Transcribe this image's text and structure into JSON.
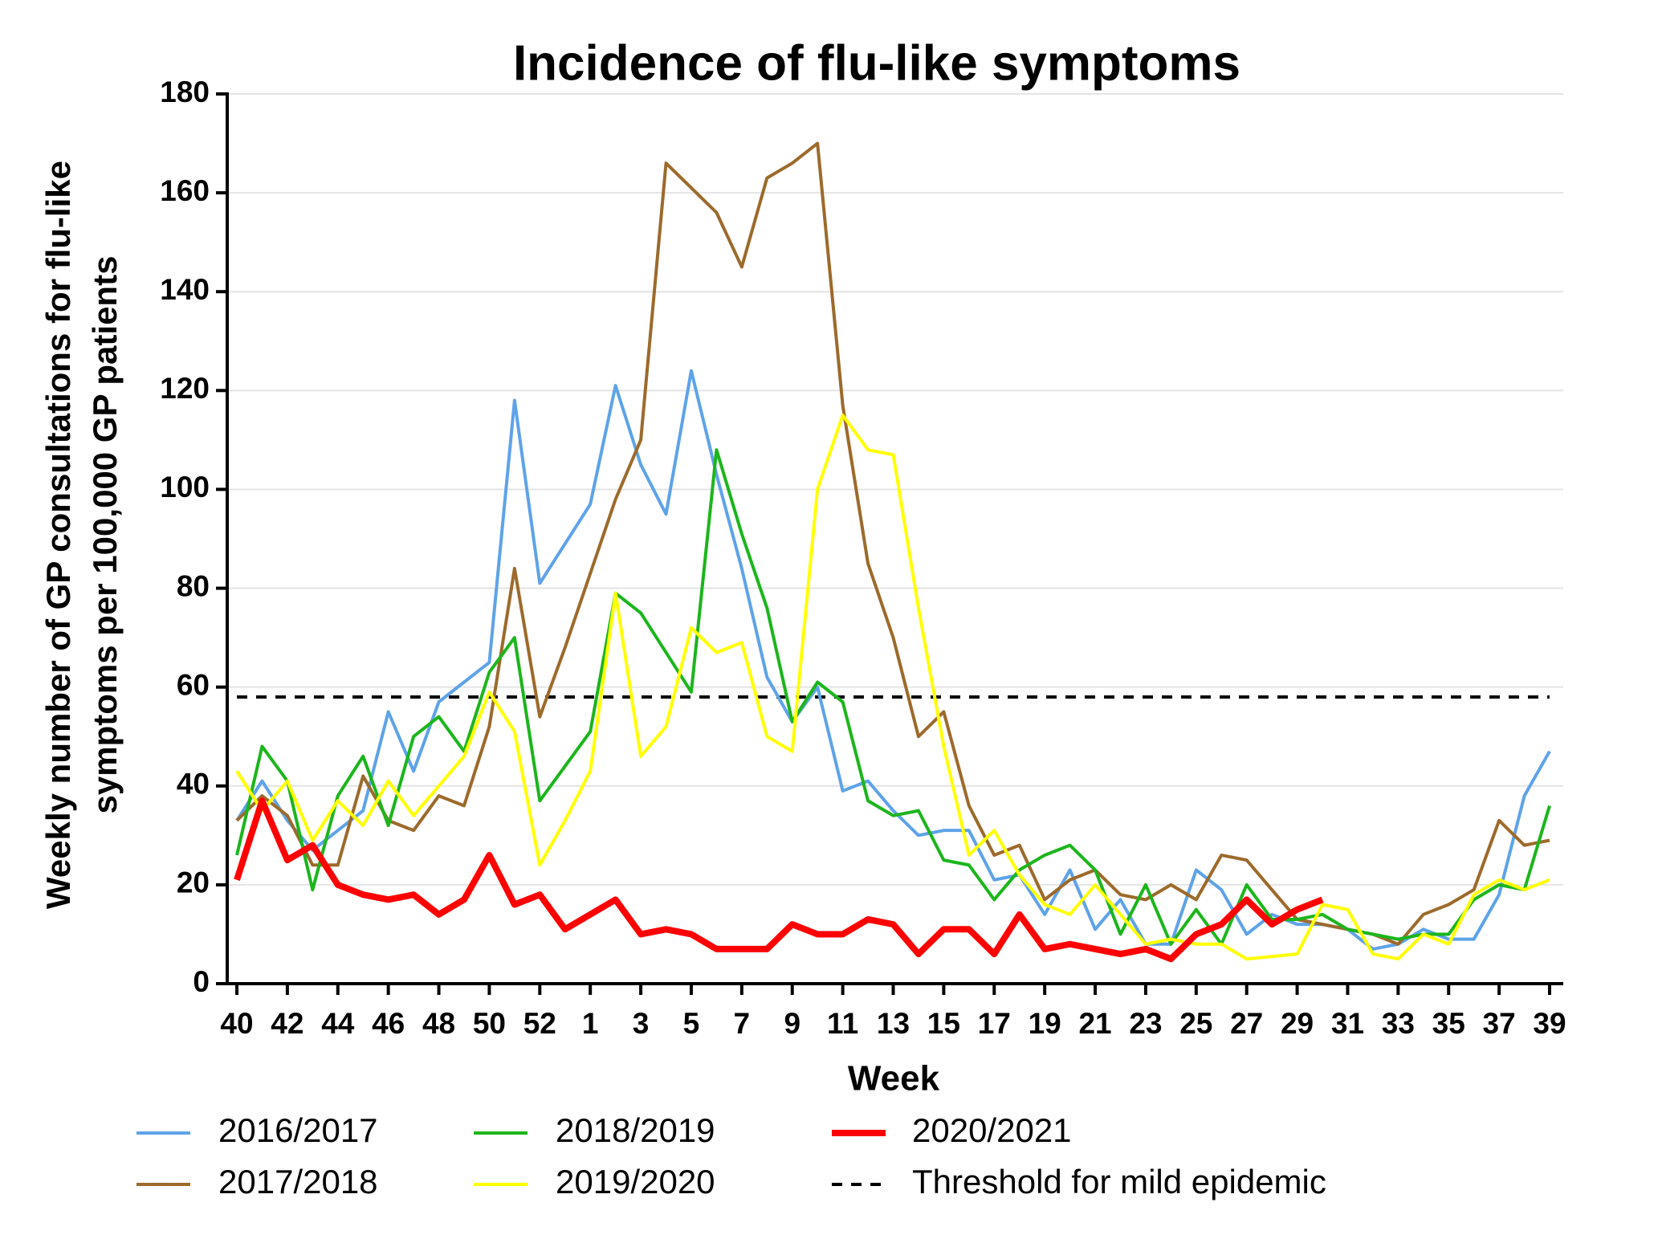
{
  "chart_data": {
    "type": "line",
    "title": "Incidence of flu-like symptoms",
    "xlabel": "Week",
    "ylabel": [
      "Weekly number of GP consultations for flu-like",
      "symptoms per 100,000 GP patients"
    ],
    "categories": [
      "40",
      null,
      "42",
      null,
      "44",
      null,
      "46",
      null,
      "48",
      null,
      "50",
      null,
      "52",
      null,
      "1",
      null,
      "3",
      null,
      "5",
      null,
      "7",
      null,
      "9",
      null,
      "11",
      null,
      "13",
      null,
      "15",
      null,
      "17",
      null,
      "19",
      null,
      "21",
      null,
      "23",
      null,
      "25",
      null,
      "27",
      null,
      "29",
      null,
      "31",
      null,
      "33",
      null,
      "35",
      null,
      "37",
      null,
      "39"
    ],
    "ylim": [
      0,
      180
    ],
    "yticks": [
      0,
      20,
      40,
      60,
      80,
      100,
      120,
      140,
      160,
      180
    ],
    "grid": true,
    "series": [
      {
        "name": "2016/2017",
        "color": "#5ea3e8",
        "values": [
          33,
          41,
          33,
          27,
          31,
          35,
          55,
          43,
          57,
          61,
          65,
          118,
          81,
          89,
          97,
          121,
          105,
          95,
          124,
          103,
          84,
          62,
          53,
          60,
          39,
          41,
          35,
          30,
          31,
          31,
          21,
          22,
          14,
          23,
          11,
          17,
          8,
          8,
          23,
          19,
          10,
          14,
          12,
          12,
          11,
          7,
          8,
          11,
          9,
          9,
          18,
          38,
          47
        ]
      },
      {
        "name": "2017/2018",
        "color": "#9c6a2b",
        "values": [
          33,
          38,
          34,
          24,
          24,
          42,
          33,
          31,
          38,
          36,
          52,
          84,
          54,
          68,
          83,
          98,
          110,
          166,
          161,
          156,
          145,
          163,
          166,
          170,
          117,
          85,
          70,
          50,
          55,
          36,
          26,
          28,
          17,
          21,
          23,
          18,
          17,
          20,
          17,
          26,
          25,
          19,
          13,
          12,
          11,
          10,
          8,
          14,
          16,
          19,
          33,
          28,
          29
        ]
      },
      {
        "name": "2018/2019",
        "color": "#1cb51c",
        "values": [
          26,
          48,
          41,
          19,
          38,
          46,
          32,
          50,
          54,
          47,
          63,
          70,
          37,
          44,
          51,
          79,
          75,
          67,
          59,
          108,
          91,
          76,
          53,
          61,
          57,
          37,
          34,
          35,
          25,
          24,
          17,
          23,
          26,
          28,
          23,
          10,
          20,
          8,
          15,
          8,
          20,
          13,
          13,
          14,
          11,
          10,
          9,
          10,
          10,
          17,
          20,
          19,
          36
        ]
      },
      {
        "name": "2019/2020",
        "color": "#ffff00",
        "values": [
          43,
          35,
          41,
          29,
          37,
          32,
          41,
          34,
          40,
          46,
          59,
          51,
          24,
          33,
          43,
          79,
          46,
          52,
          72,
          67,
          69,
          50,
          47,
          100,
          115,
          108,
          107,
          76,
          48,
          26,
          31,
          22,
          16,
          14,
          20,
          14,
          8,
          9,
          8,
          8,
          5,
          5.5,
          6,
          16,
          15,
          6,
          5,
          10,
          8,
          18,
          21,
          19,
          21
        ]
      },
      {
        "name": "2020/2021",
        "color": "#ff0000",
        "values": [
          21,
          37,
          25,
          28,
          20,
          18,
          17,
          18,
          14,
          17,
          26,
          16,
          18,
          11,
          14,
          17,
          10,
          11,
          10,
          7,
          7,
          7,
          12,
          10,
          10,
          13,
          12,
          6,
          11,
          11,
          6,
          14,
          7,
          8,
          7,
          6,
          7,
          5,
          10,
          12,
          17,
          12,
          15,
          17,
          null,
          null,
          null,
          null,
          null,
          null,
          null,
          null,
          null
        ]
      }
    ],
    "threshold": {
      "name": "Threshold for mild epidemic",
      "value": 58,
      "color": "#000000"
    }
  }
}
